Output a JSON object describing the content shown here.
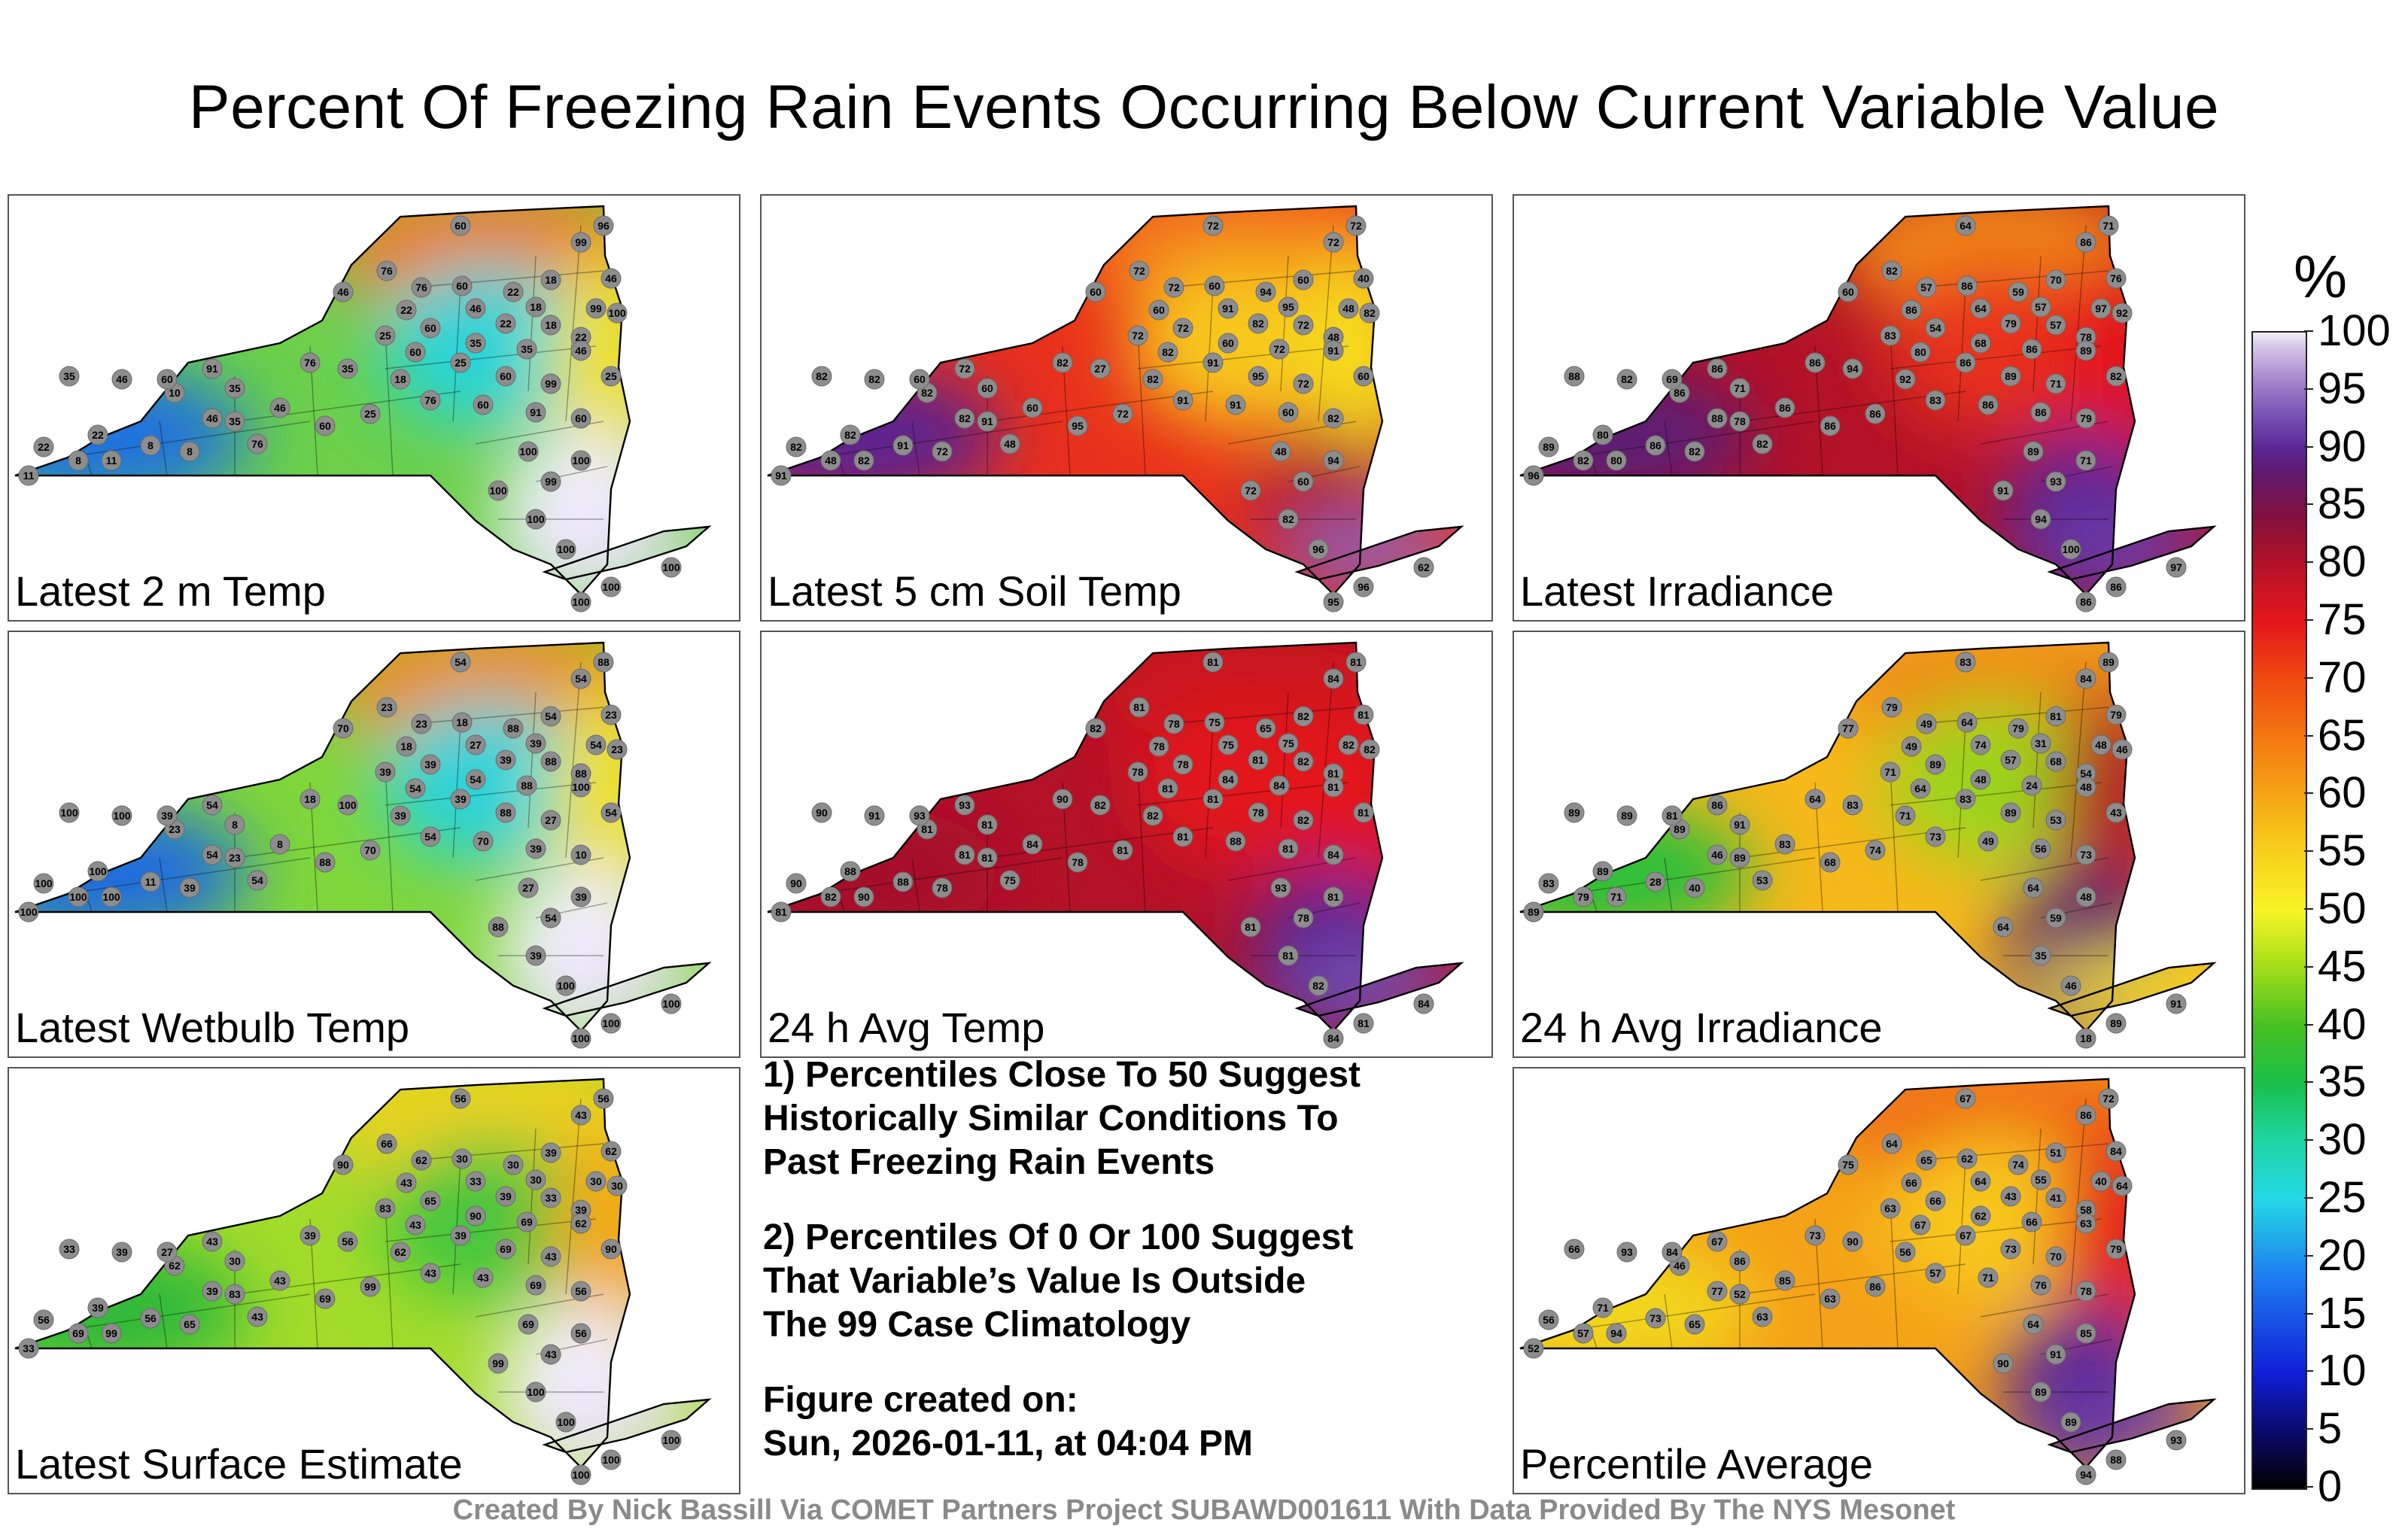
{
  "title": "Percent Of Freezing Rain Events Occurring Below Current Variable Value",
  "colorbar": {
    "unit": "%",
    "ticks": [
      "100",
      "95",
      "90",
      "85",
      "80",
      "75",
      "70",
      "65",
      "60",
      "55",
      "50",
      "45",
      "40",
      "35",
      "30",
      "25",
      "20",
      "15",
      "10",
      "5",
      "0"
    ]
  },
  "panels": [
    {
      "label": "Latest 2 m Temp",
      "colors": {
        "west": "#1d6fe0",
        "center": "#6cd04a",
        "north": "#f07a1a",
        "adir": "#27d4d8",
        "east": "#f2e022",
        "south": "#f3efff",
        "li": "#e7dff4"
      },
      "values": [
        "60",
        "96",
        "99",
        "46",
        "76",
        "76",
        "60",
        "22",
        "18",
        "46",
        "22",
        "46",
        "18",
        "99",
        "25",
        "60",
        "22",
        "18",
        "22",
        "100",
        "35",
        "35",
        "46",
        "60",
        "25",
        "60",
        "99",
        "25",
        "35",
        "18",
        "76",
        "60",
        "91",
        "60",
        "76",
        "46",
        "35",
        "35",
        "10",
        "8",
        "8",
        "46",
        "76",
        "60",
        "25",
        "11",
        "22",
        "8",
        "22",
        "11",
        "35",
        "46",
        "60",
        "91",
        "100",
        "99",
        "100",
        "100",
        "100",
        "100",
        "100",
        "100",
        "100"
      ]
    },
    {
      "label": "Latest 5 cm Soil Temp",
      "colors": {
        "west": "#5a2090",
        "center": "#e8311c",
        "north": "#f37f1a",
        "adir": "#f7c81a",
        "east": "#f6dc1f",
        "south": "#b01530",
        "li": "#8a6ac0"
      },
      "values": [
        "72",
        "72",
        "72",
        "60",
        "72",
        "72",
        "60",
        "94",
        "60",
        "40",
        "60",
        "91",
        "95",
        "48",
        "72",
        "72",
        "82",
        "72",
        "48",
        "82",
        "60",
        "72",
        "91",
        "82",
        "91",
        "95",
        "72",
        "60",
        "27",
        "82",
        "91",
        "91",
        "60",
        "82",
        "82",
        "60",
        "60",
        "91",
        "82",
        "91",
        "72",
        "82",
        "48",
        "95",
        "72",
        "82",
        "82",
        "48",
        "82",
        "91",
        "82",
        "82",
        "60",
        "72",
        "48",
        "60",
        "94",
        "72",
        "82",
        "96",
        "95",
        "96",
        "62"
      ]
    },
    {
      "label": "Latest Irradiance",
      "colors": {
        "west": "#5c1a75",
        "center": "#b31228",
        "north": "#f08a16",
        "adir": "#e8311c",
        "east": "#e3161c",
        "south": "#5a2796",
        "li": "#6e3fae"
      },
      "values": [
        "64",
        "71",
        "86",
        "60",
        "82",
        "57",
        "86",
        "59",
        "70",
        "76",
        "86",
        "64",
        "57",
        "97",
        "83",
        "54",
        "79",
        "57",
        "78",
        "92",
        "68",
        "86",
        "89",
        "80",
        "86",
        "89",
        "71",
        "82",
        "94",
        "92",
        "83",
        "86",
        "86",
        "79",
        "86",
        "86",
        "71",
        "78",
        "86",
        "86",
        "82",
        "88",
        "82",
        "86",
        "86",
        "80",
        "89",
        "82",
        "80",
        "96",
        "88",
        "82",
        "69",
        "86",
        "89",
        "93",
        "71",
        "91",
        "94",
        "100",
        "86",
        "86",
        "97"
      ]
    },
    {
      "label": "Latest Wetbulb Temp",
      "colors": {
        "west": "#1f6be0",
        "center": "#7fd63a",
        "north": "#f08a16",
        "adir": "#2bd3da",
        "east": "#f2e022",
        "south": "#f3efff",
        "li": "#e7dff4"
      },
      "values": [
        "54",
        "88",
        "54",
        "70",
        "23",
        "23",
        "18",
        "88",
        "54",
        "23",
        "18",
        "27",
        "39",
        "54",
        "39",
        "39",
        "39",
        "88",
        "88",
        "23",
        "54",
        "88",
        "100",
        "54",
        "39",
        "88",
        "27",
        "54",
        "100",
        "39",
        "54",
        "70",
        "39",
        "10",
        "18",
        "8",
        "8",
        "23",
        "23",
        "11",
        "39",
        "54",
        "54",
        "88",
        "70",
        "100",
        "100",
        "100",
        "100",
        "100",
        "100",
        "100",
        "39",
        "54",
        "27",
        "54",
        "39",
        "88",
        "39",
        "100",
        "100",
        "100",
        "100"
      ]
    },
    {
      "label": "24 h Avg Temp",
      "colors": {
        "west": "#a5102a",
        "center": "#b31228",
        "north": "#c8141e",
        "adir": "#e3161c",
        "east": "#e3161c",
        "south": "#5a2796",
        "li": "#7a54b5"
      },
      "values": [
        "81",
        "81",
        "84",
        "82",
        "81",
        "78",
        "75",
        "65",
        "82",
        "81",
        "78",
        "75",
        "75",
        "82",
        "78",
        "78",
        "81",
        "82",
        "81",
        "82",
        "84",
        "84",
        "81",
        "81",
        "81",
        "78",
        "82",
        "81",
        "82",
        "82",
        "81",
        "88",
        "81",
        "84",
        "90",
        "84",
        "81",
        "81",
        "81",
        "88",
        "78",
        "81",
        "75",
        "78",
        "81",
        "90",
        "90",
        "82",
        "88",
        "81",
        "90",
        "91",
        "93",
        "93",
        "93",
        "78",
        "81",
        "81",
        "81",
        "82",
        "84",
        "81",
        "84"
      ]
    },
    {
      "label": "24 h Avg Irradiance",
      "colors": {
        "west": "#2bbf3a",
        "center": "#f7b81a",
        "north": "#f08a16",
        "adir": "#9bd41e",
        "east": "#b31228",
        "south": "#5f1a70",
        "li": "#f7e21a"
      },
      "values": [
        "83",
        "89",
        "84",
        "77",
        "79",
        "49",
        "64",
        "79",
        "81",
        "79",
        "49",
        "74",
        "31",
        "48",
        "71",
        "89",
        "57",
        "68",
        "54",
        "46",
        "48",
        "24",
        "48",
        "64",
        "83",
        "89",
        "53",
        "43",
        "83",
        "71",
        "73",
        "49",
        "56",
        "73",
        "64",
        "83",
        "91",
        "89",
        "89",
        "28",
        "40",
        "46",
        "53",
        "68",
        "74",
        "71",
        "83",
        "79",
        "89",
        "89",
        "89",
        "89",
        "81",
        "86",
        "64",
        "59",
        "48",
        "64",
        "35",
        "46",
        "18",
        "89",
        "91"
      ]
    },
    {
      "label": "Latest Surface Estimate",
      "colors": {
        "west": "#2fb83a",
        "center": "#a3dc2a",
        "north": "#f3d21c",
        "adir": "#45c63c",
        "east": "#f5a818",
        "south": "#f3efff",
        "li": "#e7dff4"
      },
      "values": [
        "56",
        "56",
        "43",
        "90",
        "66",
        "62",
        "30",
        "30",
        "39",
        "62",
        "43",
        "33",
        "30",
        "30",
        "83",
        "65",
        "39",
        "33",
        "39",
        "30",
        "90",
        "69",
        "62",
        "43",
        "39",
        "69",
        "43",
        "90",
        "56",
        "62",
        "43",
        "43",
        "69",
        "56",
        "39",
        "43",
        "30",
        "83",
        "62",
        "56",
        "65",
        "39",
        "43",
        "69",
        "99",
        "99",
        "56",
        "69",
        "39",
        "33",
        "33",
        "39",
        "27",
        "43",
        "69",
        "43",
        "56",
        "99",
        "100",
        "100",
        "100",
        "100",
        "100"
      ]
    },
    {
      "label": "Percentile Average",
      "colors": {
        "west": "#f1d71c",
        "center": "#f4a218",
        "north": "#ef6a14",
        "adir": "#f7c81a",
        "east": "#e3161c",
        "south": "#5a2796",
        "li": "#6e3fae"
      },
      "values": [
        "67",
        "72",
        "86",
        "75",
        "64",
        "65",
        "62",
        "74",
        "51",
        "84",
        "66",
        "64",
        "55",
        "40",
        "63",
        "66",
        "43",
        "41",
        "58",
        "64",
        "62",
        "66",
        "63",
        "67",
        "67",
        "73",
        "70",
        "79",
        "90",
        "56",
        "57",
        "71",
        "76",
        "78",
        "73",
        "85",
        "86",
        "52",
        "46",
        "73",
        "65",
        "77",
        "63",
        "63",
        "86",
        "94",
        "56",
        "57",
        "71",
        "52",
        "66",
        "93",
        "84",
        "67",
        "64",
        "91",
        "85",
        "90",
        "89",
        "89",
        "94",
        "88",
        "93"
      ]
    }
  ],
  "notes": [
    "1) Percentiles Close To 50 Suggest\nHistorically Similar Conditions To\nPast Freezing Rain Events",
    "2) Percentiles Of 0 Or 100 Suggest\nThat Variable’s Value Is Outside\nThe 99 Case Climatology",
    "Figure created on:\nSun, 2026-01-11, at 04:04 PM"
  ],
  "credit": "Created By Nick Bassill Via COMET Partners Project SUBAWD001611 With Data Provided By The NYS Mesonet"
}
